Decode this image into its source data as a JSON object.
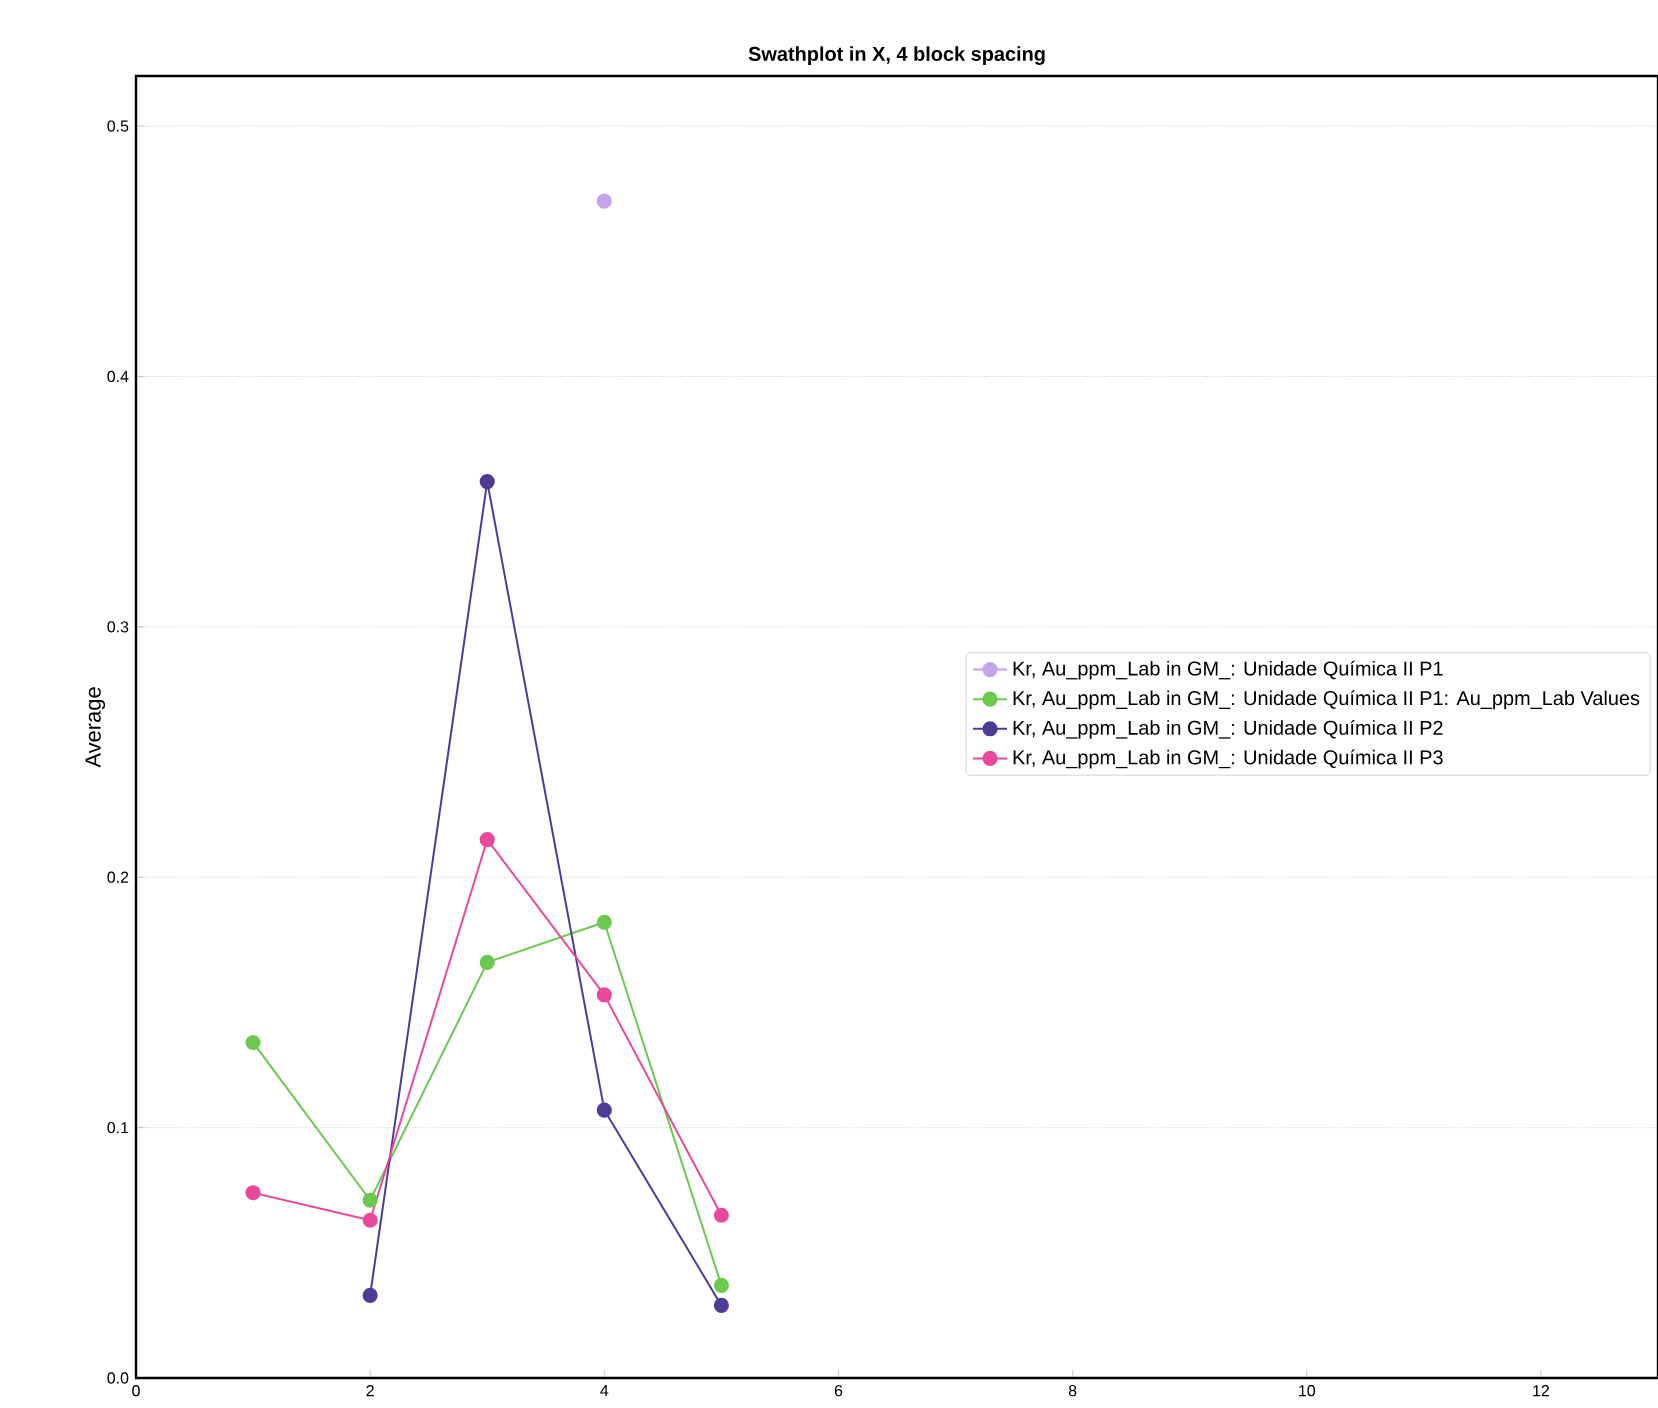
{
  "chart_data": {
    "type": "line",
    "title": "Swathplot in X, 4 block spacing",
    "ylabel": "Average",
    "xlim": [
      0,
      13
    ],
    "ylim": [
      0,
      0.52
    ],
    "xticks": [
      0,
      2,
      4,
      6,
      8,
      10,
      12
    ],
    "yticks": [
      {
        "value": 0,
        "label": "0.0"
      },
      0.1,
      0.2,
      0.3,
      0.4,
      0.5
    ],
    "grid": "y",
    "legend": "right",
    "marker": "circle",
    "line_style": "solid",
    "series": [
      {
        "name": "Kr, Au_ppm_Lab in GM_: Unidade Química II P1",
        "color": "#c5a3ec",
        "x": [
          4
        ],
        "values": [
          0.47
        ]
      },
      {
        "name": "Kr, Au_ppm_Lab in GM_: Unidade Química II P1: Au_ppm_Lab Values",
        "color": "#6cc94f",
        "x": [
          1,
          2,
          3,
          4,
          5
        ],
        "values": [
          0.134,
          0.071,
          0.166,
          0.182,
          0.037
        ]
      },
      {
        "name": "Kr, Au_ppm_Lab in GM_: Unidade Química II P2",
        "color": "#4f3a96",
        "x": [
          2,
          3,
          4,
          5
        ],
        "values": [
          0.033,
          0.358,
          0.107,
          0.029
        ]
      },
      {
        "name": "Kr, Au_ppm_Lab in GM_: Unidade Química II P3",
        "color": "#e8499b",
        "x": [
          1,
          2,
          3,
          4,
          5
        ],
        "values": [
          0.074,
          0.063,
          0.215,
          0.153,
          0.065
        ]
      }
    ]
  }
}
